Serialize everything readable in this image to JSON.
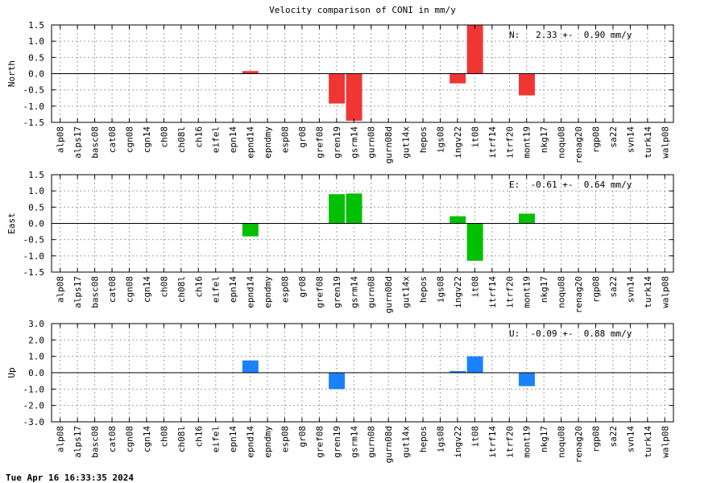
{
  "title": "Velocity comparison of CONI in mm/y",
  "timestamp": "Tue Apr 16 16:33:35 2024",
  "chart_data": [
    {
      "type": "bar",
      "ylabel": "North",
      "color": "#f03535",
      "ylim": [
        -1.5,
        1.5
      ],
      "yticks": [
        1.5,
        1.0,
        0.5,
        0.0,
        -0.5,
        -1.0,
        -1.5
      ],
      "ytick_labels": [
        "1.5",
        "1.0",
        "0.5",
        "0.0",
        "-0.5",
        "-1.0",
        "-1.5"
      ],
      "grid": true,
      "annotation": "N:   2.33 +-  0.90 mm/y",
      "categories": [
        "alp08",
        "alps17",
        "basc08",
        "cat08",
        "cgn08",
        "cgn14",
        "ch08",
        "ch08l",
        "ch16",
        "eifel",
        "epn14",
        "epnd14",
        "epndmy",
        "esp08",
        "gr08",
        "gref08",
        "gren19",
        "gsrm14",
        "gurn08",
        "gurn08d",
        "gut14x",
        "hepos",
        "igs08",
        "ingv22",
        "it08",
        "itrf14",
        "itrf20",
        "mont19",
        "nkg17",
        "noqu08",
        "renag20",
        "rgp08",
        "sa22",
        "svn14",
        "turk14",
        "walp08"
      ],
      "values": [
        null,
        null,
        null,
        null,
        null,
        null,
        null,
        null,
        null,
        null,
        null,
        0.08,
        null,
        null,
        null,
        null,
        -0.92,
        -1.45,
        null,
        null,
        null,
        null,
        null,
        -0.3,
        1.5,
        null,
        null,
        -0.67,
        null,
        null,
        null,
        null,
        null,
        null,
        null,
        null
      ]
    },
    {
      "type": "bar",
      "ylabel": "East",
      "color": "#00c000",
      "ylim": [
        -1.5,
        1.5
      ],
      "yticks": [
        1.5,
        1.0,
        0.5,
        0.0,
        -0.5,
        -1.0,
        -1.5
      ],
      "ytick_labels": [
        "1.5",
        "1.0",
        "0.5",
        "0.0",
        "-0.5",
        "-1.0",
        "-1.5"
      ],
      "grid": true,
      "annotation": "E:  -0.61 +-  0.64 mm/y",
      "categories": [
        "alp08",
        "alps17",
        "basc08",
        "cat08",
        "cgn08",
        "cgn14",
        "ch08",
        "ch08l",
        "ch16",
        "eifel",
        "epn14",
        "epnd14",
        "epndmy",
        "esp08",
        "gr08",
        "gref08",
        "gren19",
        "gsrm14",
        "gurn08",
        "gurn08d",
        "gut14x",
        "hepos",
        "igs08",
        "ingv22",
        "it08",
        "itrf14",
        "itrf20",
        "mont19",
        "nkg17",
        "noqu08",
        "renag20",
        "rgp08",
        "sa22",
        "svn14",
        "turk14",
        "walp08"
      ],
      "values": [
        null,
        null,
        null,
        null,
        null,
        null,
        null,
        null,
        null,
        null,
        null,
        -0.4,
        null,
        null,
        null,
        null,
        0.9,
        0.92,
        null,
        null,
        null,
        null,
        null,
        0.22,
        -1.15,
        null,
        null,
        0.3,
        null,
        null,
        null,
        null,
        null,
        null,
        null,
        null
      ]
    },
    {
      "type": "bar",
      "ylabel": "Up",
      "color": "#1a82ff",
      "ylim": [
        -3.0,
        3.0
      ],
      "yticks": [
        3.0,
        2.0,
        1.0,
        0.0,
        -1.0,
        -2.0,
        -3.0
      ],
      "ytick_labels": [
        "3.0",
        "2.0",
        "1.0",
        "0.0",
        "-1.0",
        "-2.0",
        "-3.0"
      ],
      "grid": true,
      "annotation": "U:  -0.09 +-  0.88 mm/y",
      "categories": [
        "alp08",
        "alps17",
        "basc08",
        "cat08",
        "cgn08",
        "cgn14",
        "ch08",
        "ch08l",
        "ch16",
        "eifel",
        "epn14",
        "epnd14",
        "epndmy",
        "esp08",
        "gr08",
        "gref08",
        "gren19",
        "gsrm14",
        "gurn08",
        "gurn08d",
        "gut14x",
        "hepos",
        "igs08",
        "ingv22",
        "it08",
        "itrf14",
        "itrf20",
        "mont19",
        "nkg17",
        "noqu08",
        "renag20",
        "rgp08",
        "sa22",
        "svn14",
        "turk14",
        "walp08"
      ],
      "values": [
        null,
        null,
        null,
        null,
        null,
        null,
        null,
        null,
        null,
        null,
        null,
        0.75,
        null,
        null,
        null,
        null,
        -1.0,
        null,
        null,
        null,
        null,
        null,
        null,
        0.1,
        1.0,
        null,
        null,
        -0.82,
        null,
        null,
        null,
        null,
        null,
        null,
        null,
        null
      ]
    }
  ]
}
